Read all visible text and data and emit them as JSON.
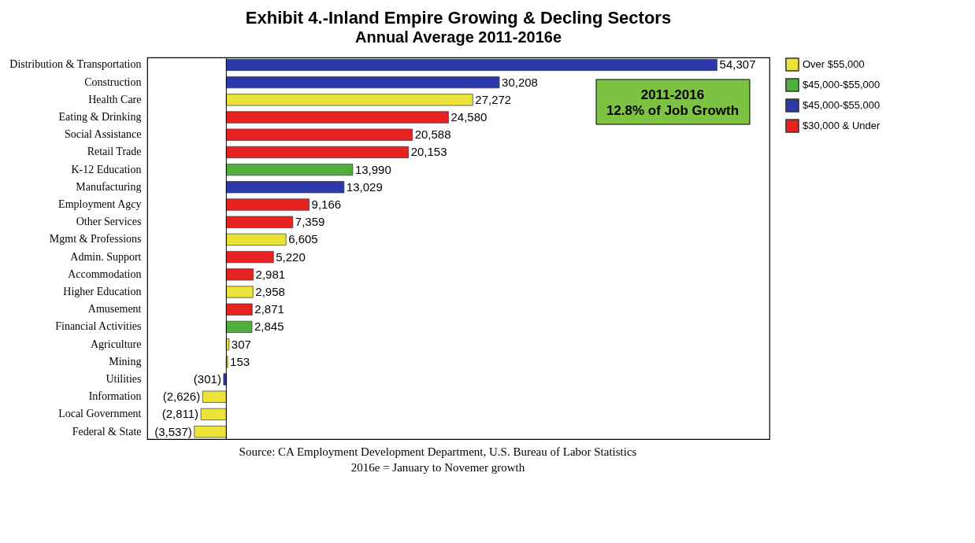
{
  "chart_data": {
    "type": "bar",
    "orientation": "horizontal",
    "stacked": true,
    "title": "Exhibit 4.-Inland Empire Growing & Decling Sectors",
    "subtitle": "Annual Average 2011-2016e",
    "legend": "right",
    "categories": [
      "Distribution & Transportation",
      "Construction",
      "Health Care",
      "Eating & Drinking",
      "Social Assistance",
      "Retail Trade",
      "K-12 Education",
      "Manufacturing",
      "Employment Agcy",
      "Other Services",
      "Mgmt & Professions",
      "Admin. Support",
      "Accommodation",
      "Higher Education",
      "Amusement",
      "Financial Activities",
      "Agriculture",
      "Mining",
      "Utilities",
      "Information",
      "Local Government",
      "Federal & State"
    ],
    "series": [
      {
        "name": "Over $55,000",
        "color": "#ece33a",
        "values": [
          null,
          null,
          27272,
          null,
          null,
          null,
          null,
          null,
          null,
          null,
          6605,
          null,
          null,
          2958,
          null,
          null,
          307,
          153,
          null,
          -2626,
          -2811,
          -3537
        ],
        "value_labels": [
          null,
          null,
          "27,272",
          null,
          null,
          null,
          null,
          null,
          null,
          null,
          "6,605",
          null,
          null,
          "2,958",
          null,
          null,
          "307",
          "153",
          null,
          "(2,626)",
          "(2,811)",
          "(3,537)"
        ]
      },
      {
        "name": "$45,000-$55,000",
        "color": "#4fae3c",
        "values": [
          null,
          null,
          null,
          null,
          null,
          null,
          13990,
          null,
          null,
          null,
          null,
          null,
          null,
          null,
          null,
          2845,
          null,
          null,
          null,
          null,
          null,
          null
        ],
        "value_labels": [
          null,
          null,
          null,
          null,
          null,
          null,
          "13,990",
          null,
          null,
          null,
          null,
          null,
          null,
          null,
          null,
          "2,845",
          null,
          null,
          null,
          null,
          null,
          null
        ]
      },
      {
        "name": "$45,000-$55,000",
        "color": "#2b3aa8",
        "values": [
          54307,
          30208,
          null,
          null,
          null,
          null,
          null,
          13029,
          null,
          null,
          null,
          null,
          null,
          null,
          null,
          null,
          null,
          null,
          -301,
          null,
          null,
          null
        ],
        "value_labels": [
          "54,307",
          "30,208",
          null,
          null,
          null,
          null,
          null,
          "13,029",
          null,
          null,
          null,
          null,
          null,
          null,
          null,
          null,
          null,
          null,
          "(301)",
          null,
          null,
          null
        ]
      },
      {
        "name": "$30,000 & Under",
        "color": "#e82121",
        "values": [
          null,
          null,
          null,
          24580,
          20588,
          20153,
          null,
          null,
          9166,
          7359,
          null,
          5220,
          2981,
          null,
          2871,
          null,
          null,
          null,
          null,
          null,
          null,
          null
        ],
        "value_labels": [
          null,
          null,
          null,
          "24,580",
          "20,588",
          "20,153",
          null,
          null,
          "9,166",
          "7,359",
          null,
          "5,220",
          "2,981",
          null,
          "2,871",
          null,
          null,
          null,
          null,
          null,
          null,
          null
        ]
      }
    ],
    "annotations": [
      "2011-2016\n12.8% of Job Growth",
      "Source:  CA Employment Development Department, U.S. Bureau of Labor Statistics",
      "2016e = January to Novemer growth"
    ]
  }
}
